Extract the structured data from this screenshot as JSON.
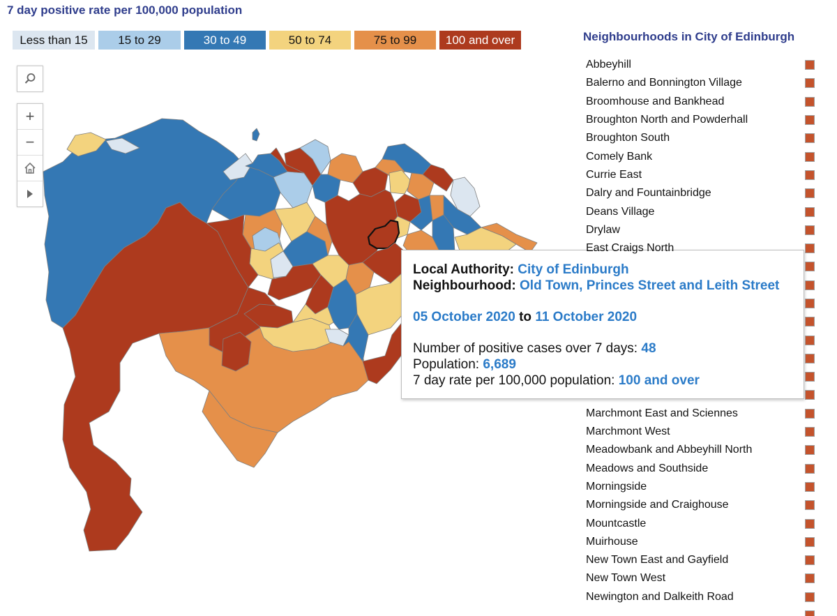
{
  "title": "7 day positive rate per 100,000 population",
  "legend": [
    {
      "label": "Less than 15",
      "color": "#dce6f0",
      "text": "#111111"
    },
    {
      "label": "15 to 29",
      "color": "#abcde9",
      "text": "#111111"
    },
    {
      "label": "30 to 49",
      "color": "#3478b4",
      "text": "#ffffff"
    },
    {
      "label": "50 to 74",
      "color": "#f3d37e",
      "text": "#111111"
    },
    {
      "label": "75 to 99",
      "color": "#e5904a",
      "text": "#111111"
    },
    {
      "label": "100 and over",
      "color": "#ad3a1e",
      "text": "#ffffff"
    }
  ],
  "tools": {
    "search": "search-icon",
    "zoom_in": "+",
    "zoom_out": "−",
    "home": "home-icon",
    "play": "play-icon"
  },
  "tooltip": {
    "la_label": "Local Authority:",
    "la_value": "City of Edinburgh",
    "nh_label": "Neighbourhood:",
    "nh_value": "Old Town, Princes Street and Leith Street",
    "date_from": "05 October 2020",
    "date_sep": "to",
    "date_to": "11 October 2020",
    "cases_label": "Number of positive cases over 7 days:",
    "cases_value": "48",
    "pop_label": "Population:",
    "pop_value": "6,689",
    "rate_label": "7 day rate per 100,000 population:",
    "rate_value": "100 and over"
  },
  "neighbourhoods": {
    "title": "Neighbourhoods in City of Edinburgh",
    "marker_color": "#c4532c",
    "items": [
      "Abbeyhill",
      "Balerno and Bonnington Village",
      "Broomhouse and Bankhead",
      "Broughton North and Powderhall",
      "Broughton South",
      "Comely Bank",
      "Currie East",
      "Dalry and Fountainbridge",
      "Deans Village",
      "Drylaw",
      "East Craigs North",
      "",
      "",
      "",
      "",
      "",
      "",
      "",
      "",
      "Marchmont East and Sciennes",
      "Marchmont West",
      "Meadowbank and Abbeyhill North",
      "Meadows and Southside",
      "Morningside",
      "Morningside and Craighouse",
      "Mountcastle",
      "Muirhouse",
      "New Town East and Gayfield",
      "New Town West",
      "Newington and Dalkeith Road",
      ""
    ]
  }
}
